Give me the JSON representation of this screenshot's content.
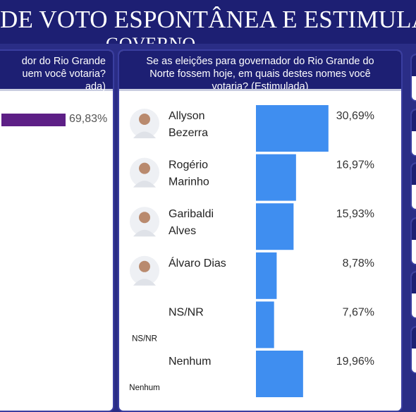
{
  "banner": {
    "title": "DE VOTO ESPONTÂNEA E ESTIMULADA",
    "subtitle": "GOVERNO"
  },
  "left_panel": {
    "question_lines": [
      "dor do Rio Grande",
      "uem você votaria?",
      "ada)"
    ],
    "bar_value": "69,83%",
    "bar_color": "#5d1f86"
  },
  "center_panel": {
    "question_lines": [
      "Se as eleições para governador do Rio Grande do",
      "Norte fossem hoje, em quais destes nomes você",
      "votaria? (Estimulada)"
    ]
  },
  "chart_data": {
    "type": "bar",
    "orientation": "horizontal",
    "categories": [
      "Allyson Bezerra",
      "Rogério Marinho",
      "Garibaldi Alves",
      "Álvaro Dias",
      "NS/NR",
      "Nenhum"
    ],
    "values": [
      30.69,
      16.97,
      15.93,
      8.78,
      7.67,
      19.96
    ],
    "value_labels": [
      "30,69%",
      "16,97%",
      "15,93%",
      "8,78%",
      "7,67%",
      "19,96%"
    ],
    "label_lines": [
      [
        "Allyson",
        "Bezerra"
      ],
      [
        "Rogério",
        "Marinho"
      ],
      [
        "Garibaldi",
        "Alves"
      ],
      [
        "Álvaro Dias"
      ],
      [
        "NS/NR"
      ],
      [
        "Nenhum"
      ]
    ],
    "icons": [
      "avatar-photo",
      "avatar-photo",
      "avatar-photo",
      "avatar-photo",
      "NS/NR",
      "Nenhum"
    ],
    "bar_color": "#3f8ef0",
    "grid": false,
    "legend": "none"
  }
}
